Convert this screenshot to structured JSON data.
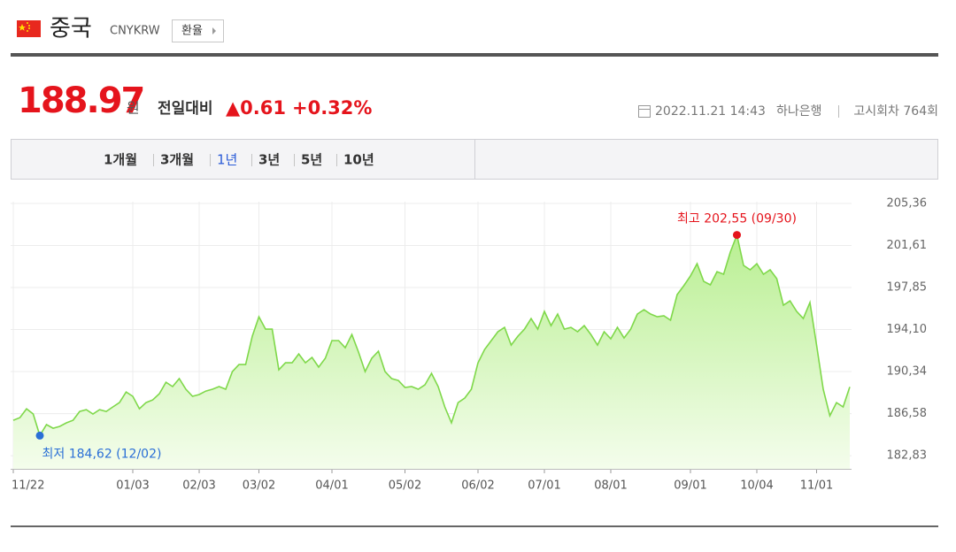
{
  "header": {
    "name": "중국",
    "code": "CNYKRW",
    "button": "환율"
  },
  "quote": {
    "price": "188.97",
    "unit": "원",
    "change_label": "전일대비",
    "change": "▲0.61",
    "change_pct": "+0.32%",
    "datetime": "2022.11.21 14:43",
    "bank": "하나은행",
    "round": "고시회차 764회"
  },
  "tabs": {
    "items": [
      "1개월",
      "3개월",
      "1년",
      "3년",
      "5년",
      "10년"
    ],
    "selected": 2
  },
  "chart_data": {
    "type": "area",
    "color": "#7fd84a",
    "fill_top": "#b9ef92",
    "fill_bottom": "#f4fdec",
    "grid": true,
    "categories": [
      "11/22",
      null,
      null,
      null,
      null,
      null,
      null,
      null,
      null,
      null,
      null,
      null,
      null,
      null,
      null,
      null,
      null,
      null,
      "01/03",
      null,
      null,
      null,
      null,
      null,
      null,
      null,
      null,
      null,
      "02/03",
      null,
      null,
      null,
      null,
      null,
      null,
      null,
      null,
      "03/02",
      null,
      null,
      null,
      null,
      null,
      null,
      null,
      null,
      null,
      null,
      "04/01",
      null,
      null,
      null,
      null,
      null,
      null,
      null,
      null,
      null,
      null,
      "05/02",
      null,
      null,
      null,
      null,
      null,
      null,
      null,
      null,
      null,
      null,
      "06/02",
      null,
      null,
      null,
      null,
      null,
      null,
      null,
      null,
      null,
      "07/01",
      null,
      null,
      null,
      null,
      null,
      null,
      null,
      null,
      null,
      "08/01",
      null,
      null,
      null,
      null,
      null,
      null,
      null,
      null,
      null,
      null,
      null,
      "09/01",
      null,
      null,
      null,
      null,
      null,
      null,
      null,
      null,
      null,
      "10/04",
      null,
      null,
      null,
      null,
      null,
      null,
      null,
      null,
      "11/01",
      null,
      null,
      null,
      null,
      null
    ],
    "values": [
      185.99,
      186.23,
      187.02,
      186.55,
      184.62,
      185.6,
      185.28,
      185.44,
      185.76,
      185.99,
      186.78,
      186.94,
      186.55,
      186.94,
      186.78,
      187.18,
      187.57,
      188.52,
      188.13,
      187.02,
      187.57,
      187.81,
      188.36,
      189.39,
      189.0,
      189.71,
      188.76,
      188.13,
      188.29,
      188.6,
      188.76,
      189.0,
      188.76,
      190.34,
      190.97,
      190.97,
      193.5,
      195.24,
      194.13,
      194.13,
      190.5,
      191.13,
      191.13,
      191.92,
      191.13,
      191.61,
      190.74,
      191.53,
      193.11,
      193.11,
      192.47,
      193.66,
      192.08,
      190.34,
      191.53,
      192.16,
      190.34,
      189.71,
      189.55,
      188.92,
      189.0,
      188.76,
      189.15,
      190.18,
      189.0,
      187.18,
      185.76,
      187.57,
      187.97,
      188.76,
      191.13,
      192.32,
      193.11,
      193.9,
      194.29,
      192.71,
      193.5,
      194.13,
      195.08,
      194.13,
      195.72,
      194.45,
      195.48,
      194.13,
      194.29,
      193.9,
      194.45,
      193.66,
      192.71,
      193.9,
      193.27,
      194.29,
      193.34,
      194.13,
      195.48,
      195.87,
      195.48,
      195.24,
      195.32,
      194.93,
      197.22,
      198.01,
      198.88,
      199.98,
      198.4,
      198.09,
      199.27,
      199.04,
      201.01,
      202.55,
      199.83,
      199.43,
      199.98,
      199.04,
      199.43,
      198.64,
      196.27,
      196.66,
      195.72,
      195.08,
      196.51,
      192.71,
      188.76,
      186.39,
      187.57,
      187.18,
      188.97
    ],
    "ylim": [
      181.65,
      205.52
    ],
    "yticks": [
      {
        "value": 205.36,
        "label": "205,36"
      },
      {
        "value": 201.61,
        "label": "201,61"
      },
      {
        "value": 197.85,
        "label": "197,85"
      },
      {
        "value": 194.1,
        "label": "194,10"
      },
      {
        "value": 190.34,
        "label": "190,34"
      },
      {
        "value": 186.58,
        "label": "186,58"
      },
      {
        "value": 182.83,
        "label": "182,83"
      }
    ],
    "annotations": [
      {
        "text": "최고 202,55 (09/30)",
        "at": "max",
        "color": "#e5141c"
      },
      {
        "text": "최저 184,62 (12/02)",
        "at": "min",
        "color": "#2a6fd6"
      }
    ]
  }
}
